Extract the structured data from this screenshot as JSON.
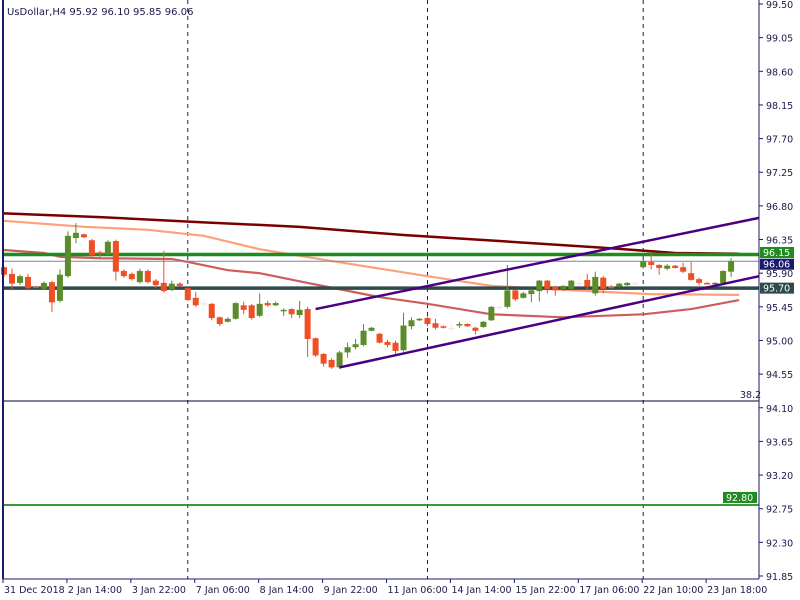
{
  "chart_data": {
    "type": "candlestick",
    "title": "UsDollar,H4  95.92 96.10 95.85 96.06",
    "ylim": [
      91.85,
      99.5
    ],
    "y_ticks": [
      "99.50",
      "99.05",
      "98.60",
      "98.15",
      "97.70",
      "97.25",
      "96.80",
      "96.35",
      "95.90",
      "95.45",
      "95.00",
      "94.55",
      "94.10",
      "93.65",
      "93.20",
      "92.75",
      "92.30",
      "91.85"
    ],
    "x_tick_labels": [
      "31 Dec 2018",
      "2 Jan 14:00",
      "3 Jan 22:00",
      "7 Jan 06:00",
      "8 Jan 14:00",
      "9 Jan 22:00",
      "11 Jan 06:00",
      "14 Jan 14:00",
      "15 Jan 22:00",
      "17 Jan 06:00",
      "22 Jan 10:00",
      "23 Jan 18:00"
    ],
    "bars_per_x_tick": 8,
    "period_separators_bar_index": [
      23,
      53,
      80
    ],
    "colors": {
      "bull": "#5b8c2a",
      "bear": "#f04e23",
      "doji": "#f5e6dc",
      "axis": "#1a1a6e",
      "support": "#2e4a4a",
      "resistance": "#1e8c1e",
      "channel": "#4b0082",
      "ma_slow": "#7a0000",
      "ma_mid": "#ffa07a",
      "ma_fast": "#cd5c5c",
      "bid": "#778899"
    },
    "ohlc": [
      [
        95.98,
        95.99,
        95.85,
        95.88
      ],
      [
        95.89,
        95.96,
        95.67,
        95.76
      ],
      [
        95.77,
        95.88,
        95.74,
        95.86
      ],
      [
        95.85,
        95.89,
        95.67,
        95.7
      ],
      [
        95.72,
        95.73,
        95.7,
        95.71
      ],
      [
        95.69,
        95.79,
        95.68,
        95.77
      ],
      [
        95.78,
        95.8,
        95.38,
        95.51
      ],
      [
        95.53,
        95.95,
        95.51,
        95.88
      ],
      [
        95.86,
        96.46,
        95.84,
        96.4
      ],
      [
        96.37,
        96.57,
        96.3,
        96.44
      ],
      [
        96.42,
        96.43,
        96.37,
        96.38
      ],
      [
        96.34,
        96.36,
        96.12,
        96.14
      ],
      [
        96.18,
        96.2,
        96.1,
        96.17
      ],
      [
        96.15,
        96.34,
        96.14,
        96.32
      ],
      [
        96.33,
        96.35,
        95.8,
        95.92
      ],
      [
        95.93,
        95.95,
        95.84,
        95.86
      ],
      [
        95.89,
        95.91,
        95.8,
        95.82
      ],
      [
        95.78,
        95.96,
        95.76,
        95.93
      ],
      [
        95.93,
        95.95,
        95.76,
        95.78
      ],
      [
        95.8,
        95.82,
        95.7,
        95.74
      ],
      [
        95.77,
        96.2,
        95.64,
        95.66
      ],
      [
        95.69,
        95.8,
        95.66,
        95.76
      ],
      [
        95.76,
        95.78,
        95.72,
        95.73
      ],
      [
        95.7,
        95.71,
        95.53,
        95.54
      ],
      [
        95.57,
        95.65,
        95.45,
        95.47
      ],
      [
        95.5,
        95.55,
        95.45,
        95.5
      ],
      [
        95.49,
        95.5,
        95.27,
        95.3
      ],
      [
        95.31,
        95.32,
        95.19,
        95.22
      ],
      [
        95.25,
        95.31,
        95.24,
        95.29
      ],
      [
        95.29,
        95.51,
        95.28,
        95.5
      ],
      [
        95.47,
        95.52,
        95.35,
        95.41
      ],
      [
        95.47,
        95.49,
        95.28,
        95.3
      ],
      [
        95.33,
        95.63,
        95.31,
        95.49
      ],
      [
        95.5,
        95.53,
        95.45,
        95.47
      ],
      [
        95.47,
        95.52,
        95.46,
        95.5
      ],
      [
        95.39,
        95.43,
        95.33,
        95.41
      ],
      [
        95.42,
        95.43,
        95.3,
        95.35
      ],
      [
        95.34,
        95.53,
        95.3,
        95.41
      ],
      [
        95.42,
        95.45,
        94.78,
        95.02
      ],
      [
        95.03,
        95.04,
        94.78,
        94.8
      ],
      [
        94.82,
        94.83,
        94.65,
        94.69
      ],
      [
        94.74,
        94.76,
        94.62,
        94.64
      ],
      [
        94.64,
        94.86,
        94.62,
        94.84
      ],
      [
        94.84,
        94.97,
        94.77,
        94.91
      ],
      [
        94.91,
        95.02,
        94.88,
        94.95
      ],
      [
        94.94,
        95.22,
        94.92,
        95.13
      ],
      [
        95.13,
        95.18,
        95.12,
        95.17
      ],
      [
        95.09,
        95.1,
        94.96,
        94.97
      ],
      [
        94.98,
        95.01,
        94.91,
        94.94
      ],
      [
        94.97,
        95.0,
        94.82,
        94.86
      ],
      [
        94.87,
        95.37,
        94.85,
        95.2
      ],
      [
        95.19,
        95.31,
        95.15,
        95.27
      ],
      [
        95.28,
        95.3,
        95.26,
        95.29
      ],
      [
        95.3,
        95.32,
        95.19,
        95.22
      ],
      [
        95.23,
        95.29,
        95.15,
        95.17
      ],
      [
        95.19,
        95.2,
        95.16,
        95.17
      ],
      [
        95.17,
        95.22,
        95.12,
        95.17
      ],
      [
        95.2,
        95.25,
        95.17,
        95.22
      ],
      [
        95.22,
        95.23,
        95.18,
        95.19
      ],
      [
        95.17,
        95.18,
        95.08,
        95.13
      ],
      [
        95.18,
        95.26,
        95.17,
        95.25
      ],
      [
        95.27,
        95.46,
        95.26,
        95.45
      ],
      [
        95.45,
        95.47,
        95.43,
        95.45
      ],
      [
        95.45,
        96.01,
        95.43,
        95.67
      ],
      [
        95.67,
        95.68,
        95.53,
        95.55
      ],
      [
        95.57,
        95.65,
        95.56,
        95.63
      ],
      [
        95.62,
        95.69,
        95.51,
        95.67
      ],
      [
        95.66,
        95.81,
        95.52,
        95.8
      ],
      [
        95.8,
        95.81,
        95.63,
        95.69
      ],
      [
        95.72,
        95.73,
        95.6,
        95.67
      ],
      [
        95.69,
        95.74,
        95.66,
        95.73
      ],
      [
        95.69,
        95.81,
        95.67,
        95.8
      ],
      [
        95.77,
        95.84,
        95.73,
        95.77
      ],
      [
        95.81,
        95.89,
        95.67,
        95.72
      ],
      [
        95.63,
        95.92,
        95.6,
        95.85
      ],
      [
        95.84,
        95.86,
        95.63,
        95.69
      ],
      [
        95.72,
        95.74,
        95.69,
        95.7
      ],
      [
        95.72,
        95.77,
        95.71,
        95.76
      ],
      [
        95.74,
        95.78,
        95.73,
        95.77
      ],
      [
        95.77,
        95.78,
        95.76,
        95.77
      ],
      [
        95.98,
        96.08,
        95.96,
        96.06
      ],
      [
        96.05,
        96.17,
        95.95,
        96.01
      ],
      [
        96.01,
        96.02,
        95.88,
        95.97
      ],
      [
        95.96,
        96.02,
        95.94,
        96.0
      ],
      [
        96.0,
        96.01,
        95.96,
        95.97
      ],
      [
        95.98,
        96.04,
        95.9,
        95.92
      ],
      [
        95.9,
        96.05,
        95.8,
        95.81
      ],
      [
        95.82,
        95.84,
        95.74,
        95.77
      ],
      [
        95.77,
        95.78,
        95.75,
        95.76
      ],
      [
        95.76,
        95.78,
        95.74,
        95.77
      ],
      [
        95.77,
        95.94,
        95.75,
        95.93
      ],
      [
        95.92,
        96.1,
        95.85,
        96.06
      ]
    ],
    "moving_averages": [
      {
        "color_key": "ma_slow",
        "points": [
          [
            0,
            96.7
          ],
          [
            12,
            96.65
          ],
          [
            25,
            96.58
          ],
          [
            37,
            96.52
          ],
          [
            50,
            96.41
          ],
          [
            62,
            96.33
          ],
          [
            75,
            96.24
          ],
          [
            84,
            96.17
          ],
          [
            92,
            96.16
          ]
        ]
      },
      {
        "color_key": "ma_mid",
        "points": [
          [
            0,
            96.6
          ],
          [
            10,
            96.52
          ],
          [
            18,
            96.48
          ],
          [
            25,
            96.4
          ],
          [
            32,
            96.22
          ],
          [
            40,
            96.08
          ],
          [
            53,
            95.86
          ],
          [
            61,
            95.73
          ],
          [
            75,
            95.65
          ],
          [
            81,
            95.62
          ],
          [
            92,
            95.61
          ]
        ]
      },
      {
        "color_key": "ma_fast",
        "points": [
          [
            0,
            96.21
          ],
          [
            5,
            96.17
          ],
          [
            7,
            96.12
          ],
          [
            12,
            96.1
          ],
          [
            21,
            96.09
          ],
          [
            23,
            96.05
          ],
          [
            28,
            95.94
          ],
          [
            32,
            95.9
          ],
          [
            38,
            95.77
          ],
          [
            47,
            95.58
          ],
          [
            53,
            95.49
          ],
          [
            61,
            95.35
          ],
          [
            70,
            95.31
          ],
          [
            80,
            95.35
          ],
          [
            86,
            95.42
          ],
          [
            92,
            95.54
          ]
        ]
      }
    ],
    "trendlines": [
      {
        "from": [
          39,
          95.42
        ],
        "to": [
          94.5,
          96.64
        ]
      },
      {
        "from": [
          42,
          94.64
        ],
        "to": [
          94.5,
          95.86
        ]
      }
    ],
    "levels": [
      {
        "price": 96.15,
        "label": "96.15",
        "color_key": "resistance",
        "style": "thick"
      },
      {
        "price": 96.06,
        "label": "96.06",
        "color_key": "bid",
        "style": "thin",
        "label_bg": "#191970"
      },
      {
        "price": 95.7,
        "label": "95.70",
        "color_key": "support",
        "style": "thick"
      },
      {
        "price": 94.19,
        "label": "38.2",
        "color_key": "axis",
        "style": "fib"
      },
      {
        "price": 92.8,
        "label": "92.80",
        "color_key": "resistance",
        "style": "medium"
      }
    ]
  }
}
